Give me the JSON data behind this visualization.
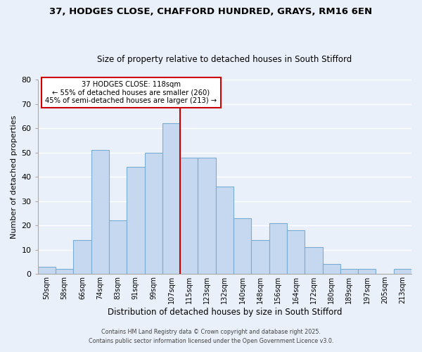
{
  "title1": "37, HODGES CLOSE, CHAFFORD HUNDRED, GRAYS, RM16 6EN",
  "title2": "Size of property relative to detached houses in South Stifford",
  "xlabel": "Distribution of detached houses by size in South Stifford",
  "ylabel": "Number of detached properties",
  "bar_labels": [
    "50sqm",
    "58sqm",
    "66sqm",
    "74sqm",
    "83sqm",
    "91sqm",
    "99sqm",
    "107sqm",
    "115sqm",
    "123sqm",
    "132sqm",
    "140sqm",
    "148sqm",
    "156sqm",
    "164sqm",
    "172sqm",
    "180sqm",
    "189sqm",
    "197sqm",
    "205sqm",
    "213sqm"
  ],
  "bar_values": [
    3,
    2,
    14,
    51,
    22,
    44,
    50,
    62,
    48,
    48,
    36,
    23,
    14,
    21,
    18,
    11,
    4,
    2,
    2,
    0,
    2
  ],
  "bar_color": "#c5d8f0",
  "bar_edge_color": "#7aadd4",
  "vline_color": "#cc0000",
  "annotation_title": "37 HODGES CLOSE: 118sqm",
  "annotation_line1": "← 55% of detached houses are smaller (260)",
  "annotation_line2": "45% of semi-detached houses are larger (213) →",
  "annotation_box_color": "#ffffff",
  "annotation_box_edge": "#cc0000",
  "ylim": [
    0,
    80
  ],
  "yticks": [
    0,
    10,
    20,
    30,
    40,
    50,
    60,
    70,
    80
  ],
  "background_color": "#eaf0f9",
  "grid_color": "#ffffff",
  "footer1": "Contains HM Land Registry data © Crown copyright and database right 2025.",
  "footer2": "Contains public sector information licensed under the Open Government Licence v3.0."
}
